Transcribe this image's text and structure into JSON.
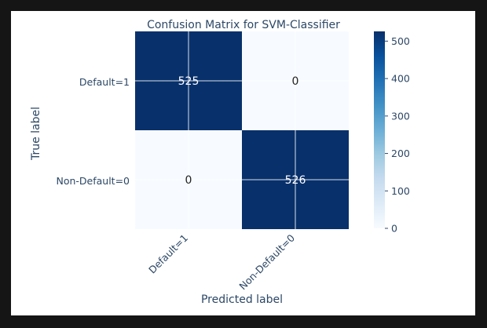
{
  "chart_data": {
    "type": "heatmap",
    "title": "Confusion Matrix for SVM-Classifier",
    "xlabel": "Predicted label",
    "ylabel": "True label",
    "row_labels": [
      "Default=1",
      "Non-Default=0"
    ],
    "col_labels": [
      "Default=1",
      "Non-Default=0"
    ],
    "matrix": [
      [
        525,
        0
      ],
      [
        0,
        526
      ]
    ],
    "colorbar": {
      "range": [
        0,
        526
      ],
      "ticks": [
        0,
        100,
        200,
        300,
        400,
        500
      ],
      "colormap": "Blues"
    },
    "grid": true
  },
  "colors": {
    "low": "#f7fbff",
    "high": "#08306b",
    "text_dark": "#2c4766",
    "text_light": "#ffffff"
  }
}
